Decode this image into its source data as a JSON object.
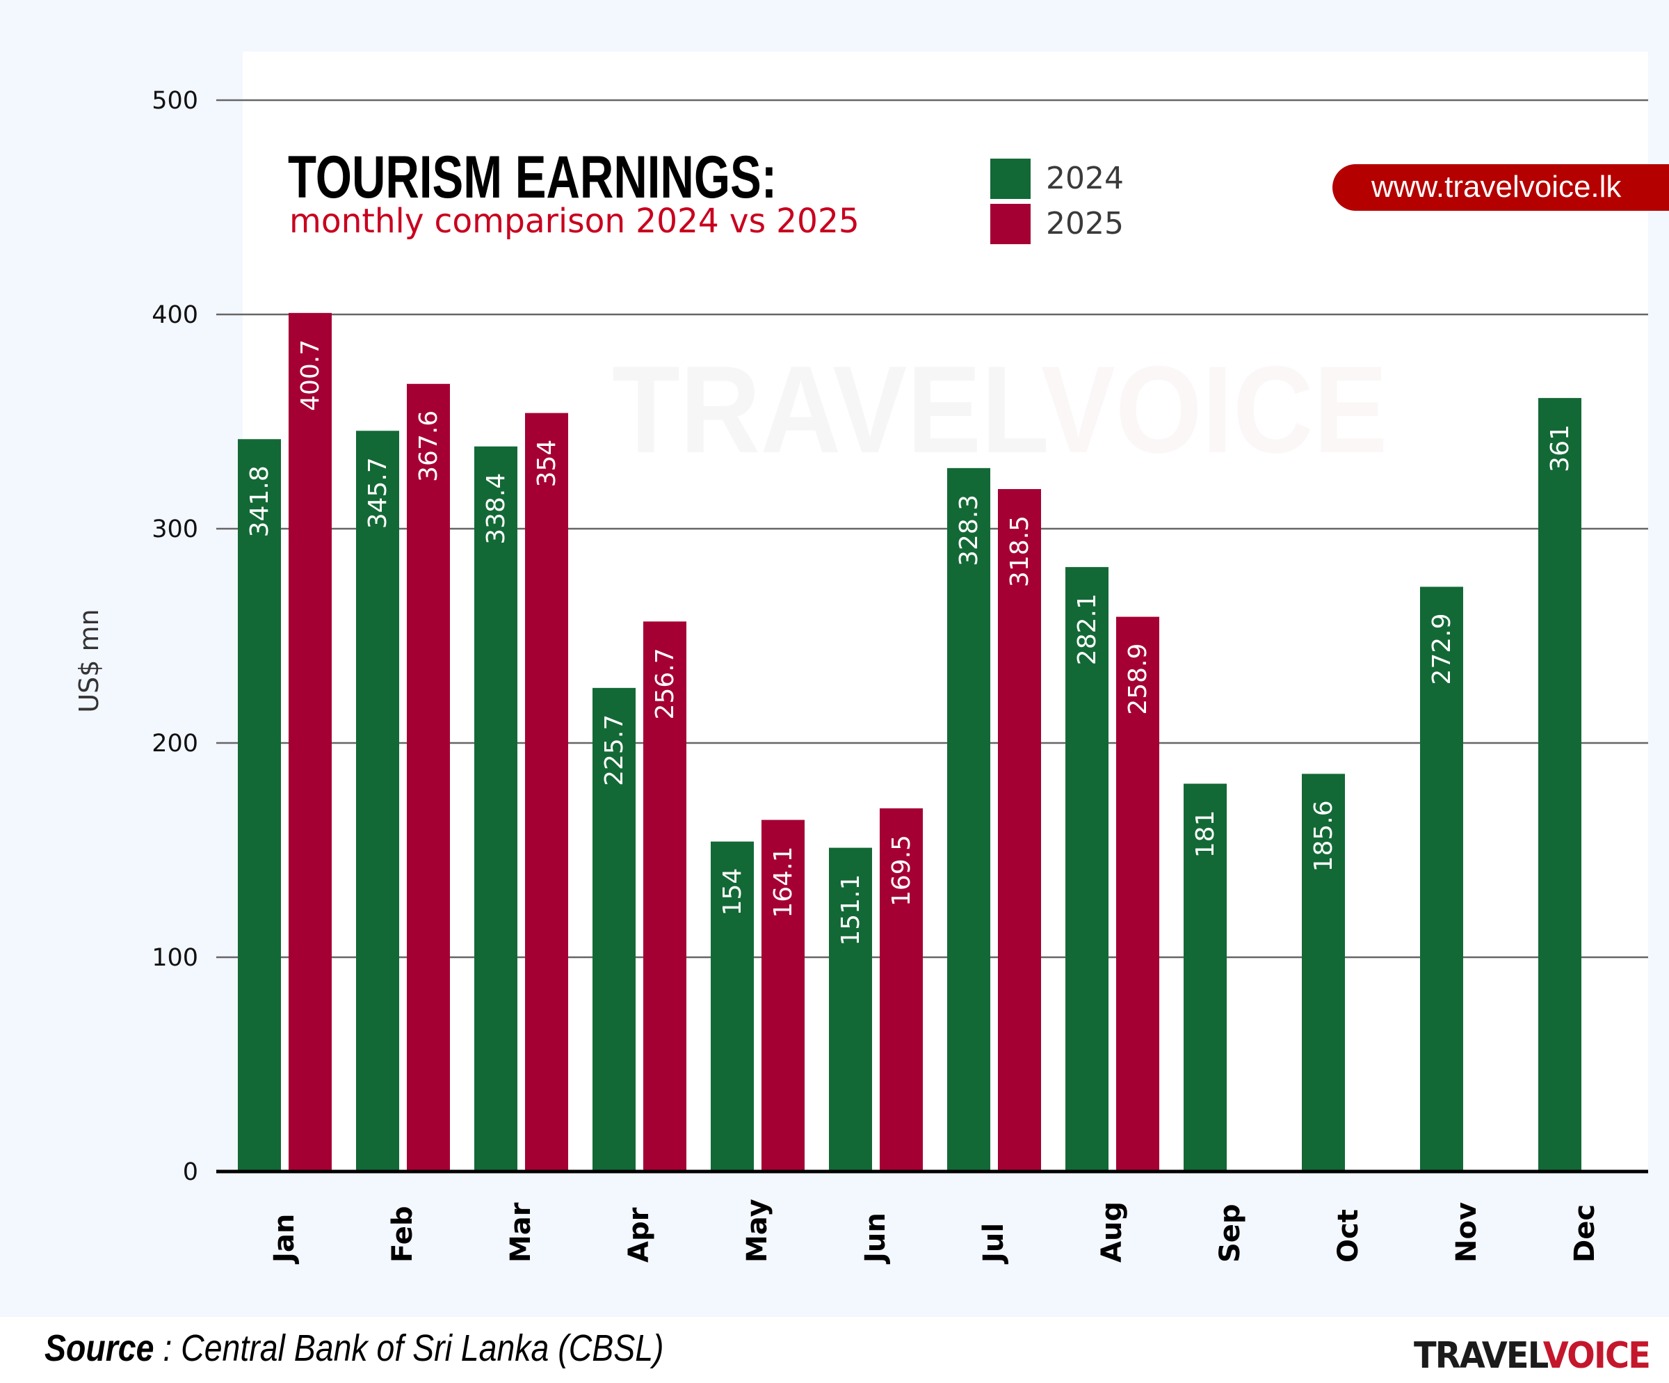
{
  "header": {
    "title": "TOURISM EARNINGS:",
    "subtitle": "monthly comparison 2024 vs 2025",
    "url": "www.travelvoice.lk"
  },
  "watermark": {
    "part1": "TRAVEL",
    "part2": "VOICE"
  },
  "footer": {
    "source_label": "Source",
    "source_text": " : Central Bank of Sri Lanka (CBSL)",
    "logo_part1": "TRAVEL",
    "logo_part2": "VOICE"
  },
  "colors": {
    "series_2024": "#136936",
    "series_2025": "#a50034",
    "accent_red": "#b50000",
    "background": "#f3f7fe"
  },
  "chart_data": {
    "type": "bar",
    "title": "TOURISM EARNINGS:",
    "subtitle": "monthly comparison 2024 vs 2025",
    "xlabel": "",
    "ylabel": "US$ mn",
    "ylim": [
      0,
      500
    ],
    "yticks": [
      0,
      100,
      200,
      300,
      400,
      500
    ],
    "grid": true,
    "legend_position": "top-center",
    "categories": [
      "Jan",
      "Feb",
      "Mar",
      "Apr",
      "May",
      "Jun",
      "Jul",
      "Aug",
      "Sep",
      "Oct",
      "Nov",
      "Dec"
    ],
    "series": [
      {
        "name": "2024",
        "color": "#136936",
        "values": [
          341.8,
          345.7,
          338.4,
          225.7,
          154,
          151.1,
          328.3,
          282.1,
          181,
          185.6,
          272.9,
          361
        ],
        "labels": [
          "341.8",
          "345.7",
          "338.4",
          "225.7",
          "154",
          "151.1",
          "328.3",
          "282.1",
          "181",
          "185.6",
          "272.9",
          "361"
        ]
      },
      {
        "name": "2025",
        "color": "#a50034",
        "values": [
          400.7,
          367.6,
          354,
          256.7,
          164.1,
          169.5,
          318.5,
          258.9,
          null,
          null,
          null,
          null
        ],
        "labels": [
          "400.7",
          "367.6",
          "354",
          "256.7",
          "164.1",
          "169.5",
          "318.5",
          "258.9",
          null,
          null,
          null,
          null
        ]
      }
    ]
  }
}
